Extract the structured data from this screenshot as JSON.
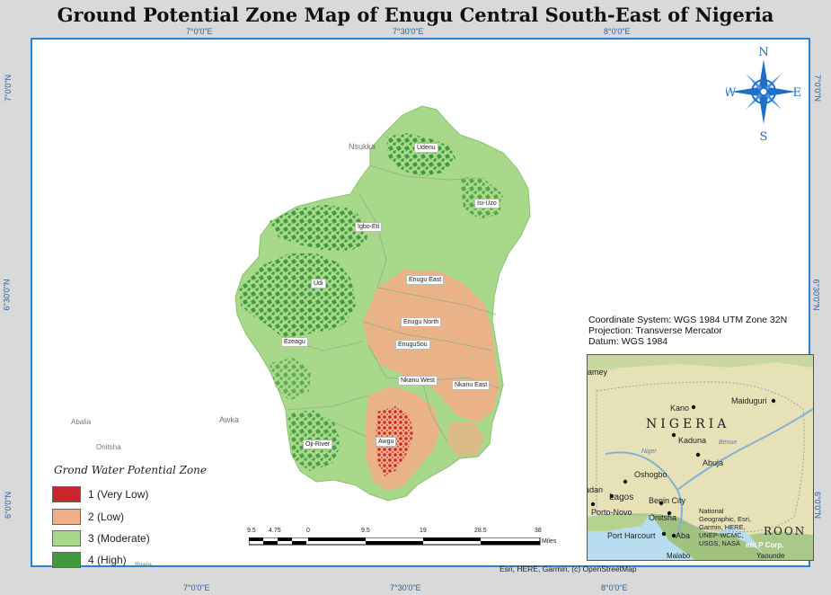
{
  "title": "Ground Potential Zone Map of Enugu Central South-East of Nigeria",
  "ticks": {
    "top": [
      "7°0'0\"E",
      "7°30'0\"E",
      "8°0'0\"E"
    ],
    "bottom": [
      "7°0'0\"E",
      "7°30'0\"E",
      "8°0'0\"E"
    ],
    "left": [
      "7°0'0\"N",
      "6°30'0\"N",
      "6°0'0\"N"
    ],
    "right": [
      "7°0'0\"N",
      "6°30'0\"N",
      "6°0'0\"N"
    ]
  },
  "places": {
    "udenu": "Udenu",
    "isi_uzo": "Isi-Uzo",
    "igbo_eti": "Igbo-Eti",
    "enugu_east": "Enugu East",
    "enugu_north": "Enugu North",
    "enugu_south": "EnuguSou",
    "udi": "Udi",
    "ezeagu": "Ezeagu",
    "nkanu_west": "Nkanu West",
    "nkanu_east": "Nkanu East",
    "oji_river": "Oji-River",
    "awgu": "Awgu"
  },
  "towns": {
    "nsukka": "Nsukka",
    "awka": "Awka",
    "abalia": "Abalia",
    "onitsha": "Onitsha",
    "ihiala": "Ihiala"
  },
  "legend": {
    "title": "Grond Water Potential Zone",
    "items": [
      {
        "label": "1 (Very Low)",
        "color": "#c8262b"
      },
      {
        "label": "2 (Low)",
        "color": "#f2ae86"
      },
      {
        "label": "3 (Moderate)",
        "color": "#a8d88a"
      },
      {
        "label": "4 (High)",
        "color": "#3e9a3a"
      }
    ]
  },
  "coordinate_info": {
    "system": "Coordinate System: WGS 1984 UTM Zone 32N",
    "projection": "Projection: Transverse Mercator",
    "datum": "Datum: WGS 1984"
  },
  "compass": {
    "n": "N",
    "s": "S",
    "e": "E",
    "w": "W"
  },
  "scale": {
    "labels": [
      "9.5",
      "4.75",
      "0",
      "9.5",
      "19",
      "28.5",
      "38"
    ],
    "unit": "Miles"
  },
  "inset": {
    "country": "NIGERIA",
    "cities": [
      "Kano",
      "Maiduguri",
      "Kaduna",
      "Abuja",
      "Oshogbo",
      "Lagos",
      "Benin City",
      "Porto-Novo",
      "Onitsha",
      "Port Harcourt",
      "Aba"
    ],
    "partial_labels": [
      "amey",
      "adan",
      "Malabo",
      "Yaounde",
      "ROON",
      "Benue",
      "Niger"
    ],
    "attribution": "National Geographic, Esri, Garmin, HERE, UNEP-WCMC, USGS, NASA",
    "overlay": "ent P Corp."
  },
  "credit": "Esri, HERE, Garmin, (c) OpenStreetMap",
  "colors": {
    "frame": "#2a7fd0",
    "compass": "#1f6fc8"
  }
}
